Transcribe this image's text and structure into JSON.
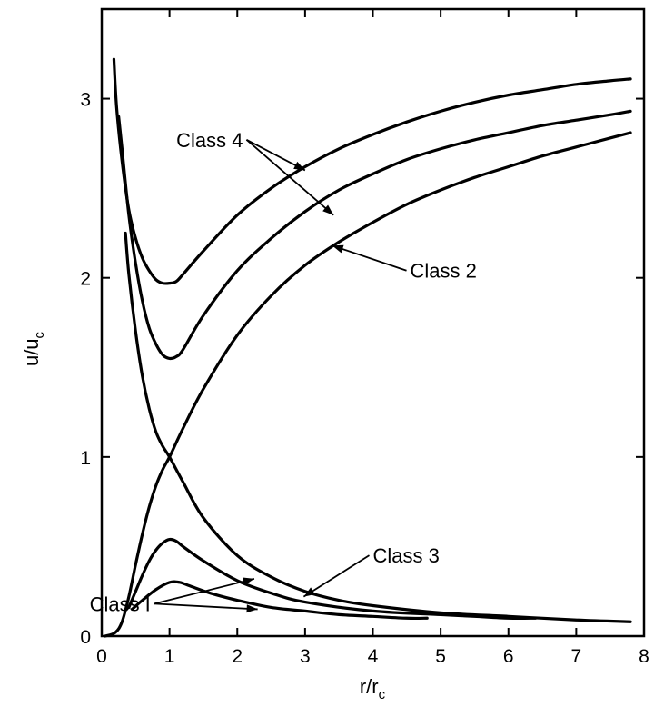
{
  "chart_data": {
    "type": "line",
    "xlabel": {
      "main": "r/r",
      "sub": "c"
    },
    "ylabel": {
      "main": "u/u",
      "sub": "c"
    },
    "xlim": [
      0,
      8
    ],
    "ylim": [
      0,
      3.5
    ],
    "xticks": [
      "0",
      "1",
      "2",
      "3",
      "4",
      "5",
      "6",
      "7",
      "8"
    ],
    "yticks": [
      "0",
      "1",
      "2",
      "3"
    ],
    "grid": false,
    "series": [
      {
        "name": "Class 2",
        "points": [
          [
            0.05,
            0
          ],
          [
            0.2,
            0.02
          ],
          [
            0.3,
            0.08
          ],
          [
            0.4,
            0.22
          ],
          [
            0.5,
            0.4
          ],
          [
            0.6,
            0.57
          ],
          [
            0.7,
            0.72
          ],
          [
            0.8,
            0.84
          ],
          [
            0.9,
            0.93
          ],
          [
            1.0,
            1.0
          ],
          [
            1.2,
            1.16
          ],
          [
            1.5,
            1.38
          ],
          [
            2.0,
            1.68
          ],
          [
            2.5,
            1.9
          ],
          [
            3.0,
            2.07
          ],
          [
            3.5,
            2.2
          ],
          [
            4.0,
            2.31
          ],
          [
            4.5,
            2.41
          ],
          [
            5.0,
            2.49
          ],
          [
            5.5,
            2.56
          ],
          [
            6.0,
            2.62
          ],
          [
            6.5,
            2.68
          ],
          [
            7.0,
            2.73
          ],
          [
            7.5,
            2.78
          ],
          [
            7.8,
            2.81
          ]
        ]
      },
      {
        "name": "Class 4",
        "points": [
          [
            0.18,
            3.22
          ],
          [
            0.22,
            2.95
          ],
          [
            0.3,
            2.65
          ],
          [
            0.4,
            2.38
          ],
          [
            0.5,
            2.22
          ],
          [
            0.6,
            2.11
          ],
          [
            0.7,
            2.04
          ],
          [
            0.8,
            1.99
          ],
          [
            0.9,
            1.97
          ],
          [
            1.0,
            1.97
          ],
          [
            1.1,
            1.98
          ],
          [
            1.2,
            2.02
          ],
          [
            1.5,
            2.15
          ],
          [
            2.0,
            2.35
          ],
          [
            2.5,
            2.5
          ],
          [
            3.0,
            2.62
          ],
          [
            3.5,
            2.72
          ],
          [
            4.0,
            2.8
          ],
          [
            4.5,
            2.87
          ],
          [
            5.0,
            2.93
          ],
          [
            5.5,
            2.98
          ],
          [
            6.0,
            3.02
          ],
          [
            6.5,
            3.05
          ],
          [
            7.0,
            3.08
          ],
          [
            7.5,
            3.1
          ],
          [
            7.8,
            3.11
          ]
        ]
      },
      {
        "name": "Class 4",
        "points": [
          [
            0.25,
            2.9
          ],
          [
            0.3,
            2.72
          ],
          [
            0.4,
            2.35
          ],
          [
            0.5,
            2.08
          ],
          [
            0.6,
            1.87
          ],
          [
            0.7,
            1.72
          ],
          [
            0.8,
            1.63
          ],
          [
            0.9,
            1.57
          ],
          [
            1.0,
            1.55
          ],
          [
            1.1,
            1.56
          ],
          [
            1.2,
            1.6
          ],
          [
            1.5,
            1.79
          ],
          [
            2.0,
            2.04
          ],
          [
            2.5,
            2.22
          ],
          [
            3.0,
            2.37
          ],
          [
            3.5,
            2.49
          ],
          [
            4.0,
            2.58
          ],
          [
            4.5,
            2.66
          ],
          [
            5.0,
            2.72
          ],
          [
            5.5,
            2.77
          ],
          [
            6.0,
            2.81
          ],
          [
            6.5,
            2.85
          ],
          [
            7.0,
            2.88
          ],
          [
            7.5,
            2.91
          ],
          [
            7.8,
            2.93
          ]
        ]
      },
      {
        "name": "Class 3",
        "points": [
          [
            0.35,
            2.25
          ],
          [
            0.4,
            2.02
          ],
          [
            0.5,
            1.7
          ],
          [
            0.6,
            1.45
          ],
          [
            0.7,
            1.27
          ],
          [
            0.8,
            1.14
          ],
          [
            0.9,
            1.06
          ],
          [
            1.0,
            1.0
          ],
          [
            1.2,
            0.86
          ],
          [
            1.5,
            0.66
          ],
          [
            2.0,
            0.45
          ],
          [
            2.5,
            0.33
          ],
          [
            3.0,
            0.25
          ],
          [
            3.5,
            0.2
          ],
          [
            4.0,
            0.17
          ],
          [
            5.0,
            0.13
          ],
          [
            6.0,
            0.11
          ],
          [
            7.0,
            0.09
          ],
          [
            7.8,
            0.08
          ]
        ]
      },
      {
        "name": "Class 1",
        "points": [
          [
            0.4,
            0.16
          ],
          [
            0.5,
            0.25
          ],
          [
            0.6,
            0.34
          ],
          [
            0.7,
            0.42
          ],
          [
            0.8,
            0.48
          ],
          [
            0.9,
            0.52
          ],
          [
            1.0,
            0.54
          ],
          [
            1.1,
            0.53
          ],
          [
            1.2,
            0.5
          ],
          [
            1.5,
            0.42
          ],
          [
            2.0,
            0.31
          ],
          [
            2.5,
            0.24
          ],
          [
            3.0,
            0.19
          ],
          [
            4.0,
            0.14
          ],
          [
            5.0,
            0.12
          ],
          [
            5.5,
            0.11
          ],
          [
            6.0,
            0.1
          ],
          [
            6.4,
            0.1
          ]
        ]
      },
      {
        "name": "Class 1",
        "points": [
          [
            0.45,
            0.15
          ],
          [
            0.6,
            0.2
          ],
          [
            0.8,
            0.26
          ],
          [
            1.0,
            0.3
          ],
          [
            1.15,
            0.3
          ],
          [
            1.3,
            0.28
          ],
          [
            1.6,
            0.24
          ],
          [
            2.0,
            0.2
          ],
          [
            2.5,
            0.16
          ],
          [
            3.0,
            0.14
          ],
          [
            3.5,
            0.12
          ],
          [
            4.0,
            0.11
          ],
          [
            4.5,
            0.1
          ],
          [
            4.8,
            0.1
          ]
        ]
      }
    ],
    "annotations": [
      {
        "id": "class4",
        "text": "Class 4",
        "at": [
          1.1,
          2.73
        ],
        "arrows_to": [
          [
            3.0,
            2.6
          ],
          [
            3.42,
            2.35
          ]
        ]
      },
      {
        "id": "class2",
        "text": "Class 2",
        "at": [
          4.55,
          2.0
        ],
        "arrows_to": [
          [
            3.4,
            2.18
          ]
        ]
      },
      {
        "id": "class3",
        "text": "Class 3",
        "at": [
          4.0,
          0.41
        ],
        "arrows_to": [
          [
            2.98,
            0.22
          ]
        ]
      },
      {
        "id": "class1",
        "text": "Class I",
        "at": [
          -0.18,
          0.14
        ],
        "arrows_to": [
          [
            2.25,
            0.32
          ],
          [
            2.3,
            0.15
          ]
        ]
      }
    ]
  }
}
